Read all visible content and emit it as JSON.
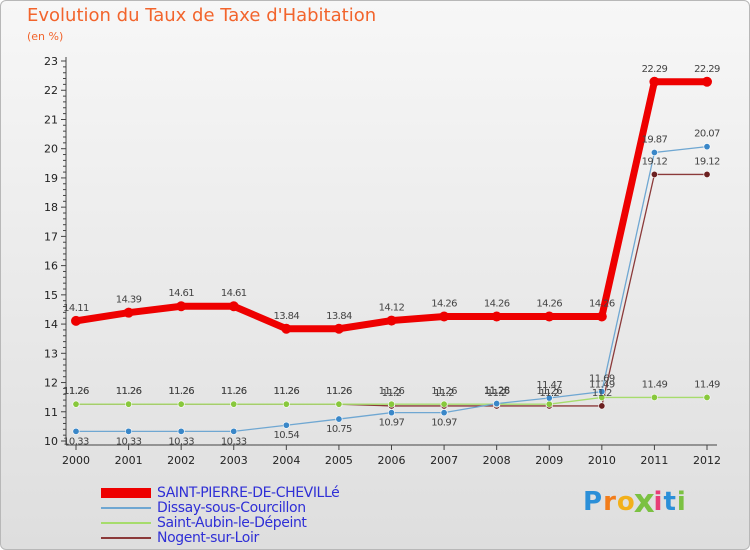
{
  "page": {
    "title": "Evolution du Taux de Taxe d'Habitation",
    "unit": "(en %)",
    "logo": "Proxiti"
  },
  "colors": {
    "title": "#f2642c",
    "axis": "#444444",
    "legend_text": "#2f2fd6"
  },
  "chart_data": {
    "type": "line",
    "title": "Evolution du Taux de Taxe d'Habitation",
    "ylabel": "(en %)",
    "xlabel": "",
    "grid": false,
    "ylim": [
      10,
      23
    ],
    "yticks": [
      10,
      11,
      12,
      13,
      14,
      15,
      16,
      17,
      18,
      19,
      20,
      21,
      22,
      23
    ],
    "x": [
      2000,
      2001,
      2002,
      2003,
      2004,
      2005,
      2006,
      2007,
      2008,
      2009,
      2010,
      2011,
      2012
    ],
    "series": [
      {
        "name": "SAINT-PIERRE-DE-CHEVILLé",
        "color": "#ee0000",
        "marker_color": "#ee0000",
        "values": [
          14.11,
          14.39,
          14.61,
          14.61,
          13.84,
          13.84,
          14.12,
          14.26,
          14.26,
          14.26,
          14.26,
          22.29,
          22.29
        ],
        "labels": [
          "14.11",
          "14.39",
          "14.61",
          "14.61",
          "13.84",
          "13.84",
          "14.12",
          "14.26",
          "14.26",
          "14.26",
          "14.26",
          "22.29",
          "22.29"
        ]
      },
      {
        "name": "Dissay-sous-Courcillon",
        "color": "#6fa7d2",
        "marker_color": "#3a87c8",
        "values": [
          10.33,
          10.33,
          10.33,
          10.33,
          10.54,
          10.75,
          10.97,
          10.97,
          11.28,
          11.47,
          11.69,
          19.87,
          20.07
        ],
        "labels": [
          "10.33",
          "10.33",
          "10.33",
          "10.33",
          "10.54",
          "10.75",
          "10.97",
          "10.97",
          "11.28",
          "11.47",
          "11.69",
          "19.87",
          "20.07"
        ]
      },
      {
        "name": "Saint-Aubin-le-Dépeint",
        "color": "#a6dc6c",
        "marker_color": "#88c83c",
        "values": [
          11.26,
          11.26,
          11.26,
          11.26,
          11.26,
          11.26,
          11.26,
          11.26,
          11.26,
          11.26,
          11.49,
          11.49,
          11.49
        ],
        "labels": [
          "11.26",
          "11.26",
          "11.26",
          "11.26",
          "11.26",
          "11.26",
          "11.26",
          "11.26",
          "11.26",
          "11.26",
          "11.49",
          "11.49",
          "11.49"
        ]
      },
      {
        "name": "Nogent-sur-Loir",
        "color": "#8b3a3a",
        "marker_color": "#6b2020",
        "values": [
          11.26,
          11.26,
          11.26,
          11.26,
          11.26,
          11.26,
          11.2,
          11.2,
          11.2,
          11.2,
          11.2,
          19.12,
          19.12
        ],
        "labels": [
          "11.26",
          "11.26",
          "11.26",
          "11.26",
          "11.26",
          "11.26",
          "11.2",
          "11.2",
          "11.2",
          "11.2",
          "11.2",
          "19.12",
          "19.12"
        ]
      }
    ],
    "legend_position": "bottom-left"
  }
}
